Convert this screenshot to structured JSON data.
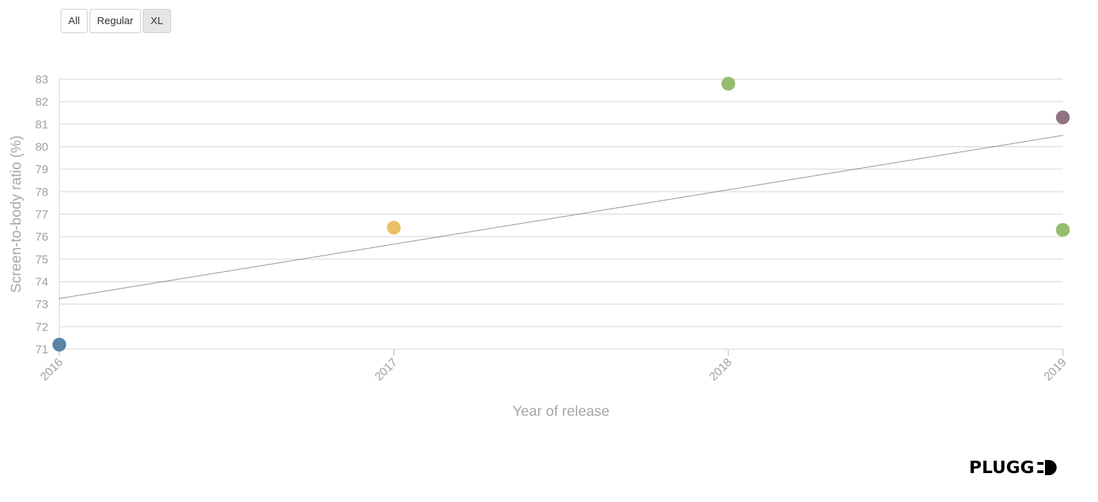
{
  "filters": {
    "buttons": [
      {
        "label": "All",
        "active": false
      },
      {
        "label": "Regular",
        "active": false
      },
      {
        "label": "XL",
        "active": true
      }
    ]
  },
  "chart_data": {
    "type": "scatter",
    "title": "",
    "xlabel": "Year of release",
    "ylabel": "Screen-to-body ratio (%)",
    "xlim": [
      2016,
      2019
    ],
    "ylim": [
      71,
      83
    ],
    "xticks": [
      "2016",
      "2017",
      "2018",
      "2019"
    ],
    "yticks": [
      71,
      72,
      73,
      74,
      75,
      76,
      77,
      78,
      79,
      80,
      81,
      82,
      83
    ],
    "grid": true,
    "points": [
      {
        "x": 2016,
        "y": 71.2,
        "color": "#5a83a8"
      },
      {
        "x": 2017,
        "y": 76.4,
        "color": "#ebc063"
      },
      {
        "x": 2018,
        "y": 82.8,
        "color": "#96bc6e"
      },
      {
        "x": 2019,
        "y": 81.3,
        "color": "#8f7383"
      },
      {
        "x": 2019,
        "y": 76.3,
        "color": "#96bc6e"
      }
    ],
    "trendline": {
      "start": {
        "x": 2016,
        "y": 73.25
      },
      "end": {
        "x": 2019,
        "y": 80.5
      },
      "color": "#444444"
    }
  },
  "brand": {
    "logo_text": "PLUGG",
    "color": "#000000"
  }
}
